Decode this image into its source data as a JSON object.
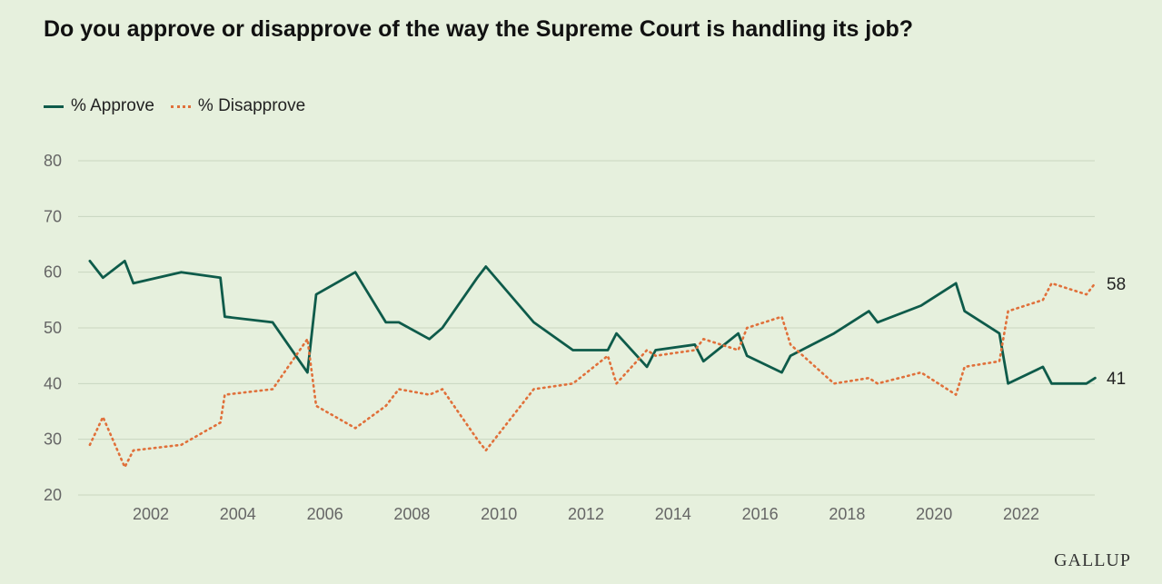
{
  "chart_data": {
    "type": "line",
    "title": "Do you approve or disapprove of the way the Supreme Court is handling its job?",
    "xlabel": "",
    "ylabel": "",
    "ylim": [
      20,
      80
    ],
    "yticks": [
      20,
      30,
      40,
      50,
      60,
      70,
      80
    ],
    "xticks": [
      2002,
      2004,
      2006,
      2008,
      2010,
      2012,
      2014,
      2016,
      2018,
      2020,
      2022
    ],
    "grid": true,
    "legend_position": "top-left",
    "series": [
      {
        "name": "% Approve",
        "color": "#0e5b4a",
        "style": "solid",
        "end_label": "41",
        "points": [
          [
            2000.6,
            62
          ],
          [
            2000.9,
            59
          ],
          [
            2001.4,
            62
          ],
          [
            2001.6,
            58
          ],
          [
            2002.7,
            60
          ],
          [
            2003.6,
            59
          ],
          [
            2003.7,
            52
          ],
          [
            2004.8,
            51
          ],
          [
            2005.6,
            42
          ],
          [
            2005.8,
            56
          ],
          [
            2006.7,
            60
          ],
          [
            2007.4,
            51
          ],
          [
            2007.7,
            51
          ],
          [
            2008.4,
            48
          ],
          [
            2008.7,
            50
          ],
          [
            2009.5,
            59
          ],
          [
            2009.7,
            61
          ],
          [
            2010.8,
            51
          ],
          [
            2011.7,
            46
          ],
          [
            2012.5,
            46
          ],
          [
            2012.7,
            49
          ],
          [
            2013.4,
            43
          ],
          [
            2013.6,
            46
          ],
          [
            2014.5,
            47
          ],
          [
            2014.7,
            44
          ],
          [
            2015.5,
            49
          ],
          [
            2015.7,
            45
          ],
          [
            2016.5,
            42
          ],
          [
            2016.7,
            45
          ],
          [
            2017.7,
            49
          ],
          [
            2018.5,
            53
          ],
          [
            2018.7,
            51
          ],
          [
            2019.7,
            54
          ],
          [
            2020.5,
            58
          ],
          [
            2020.7,
            53
          ],
          [
            2021.5,
            49
          ],
          [
            2021.7,
            40
          ],
          [
            2022.5,
            43
          ],
          [
            2022.7,
            40
          ],
          [
            2023.5,
            40
          ],
          [
            2023.7,
            41
          ]
        ]
      },
      {
        "name": "% Disapprove",
        "color": "#e0703a",
        "style": "dotted",
        "end_label": "58",
        "points": [
          [
            2000.6,
            29
          ],
          [
            2000.9,
            34
          ],
          [
            2001.4,
            25
          ],
          [
            2001.6,
            28
          ],
          [
            2002.7,
            29
          ],
          [
            2003.6,
            33
          ],
          [
            2003.7,
            38
          ],
          [
            2004.8,
            39
          ],
          [
            2005.6,
            48
          ],
          [
            2005.8,
            36
          ],
          [
            2006.7,
            32
          ],
          [
            2007.4,
            36
          ],
          [
            2007.7,
            39
          ],
          [
            2008.4,
            38
          ],
          [
            2008.7,
            39
          ],
          [
            2009.5,
            30
          ],
          [
            2009.7,
            28
          ],
          [
            2010.8,
            39
          ],
          [
            2011.7,
            40
          ],
          [
            2012.5,
            45
          ],
          [
            2012.7,
            40
          ],
          [
            2013.4,
            46
          ],
          [
            2013.6,
            45
          ],
          [
            2014.5,
            46
          ],
          [
            2014.7,
            48
          ],
          [
            2015.5,
            46
          ],
          [
            2015.7,
            50
          ],
          [
            2016.5,
            52
          ],
          [
            2016.7,
            47
          ],
          [
            2017.7,
            40
          ],
          [
            2018.5,
            41
          ],
          [
            2018.7,
            40
          ],
          [
            2019.7,
            42
          ],
          [
            2020.5,
            38
          ],
          [
            2020.7,
            43
          ],
          [
            2021.5,
            44
          ],
          [
            2021.7,
            53
          ],
          [
            2022.5,
            55
          ],
          [
            2022.7,
            58
          ],
          [
            2023.5,
            56
          ],
          [
            2023.7,
            58
          ]
        ]
      }
    ]
  },
  "branding": {
    "text": "GALLUP"
  }
}
